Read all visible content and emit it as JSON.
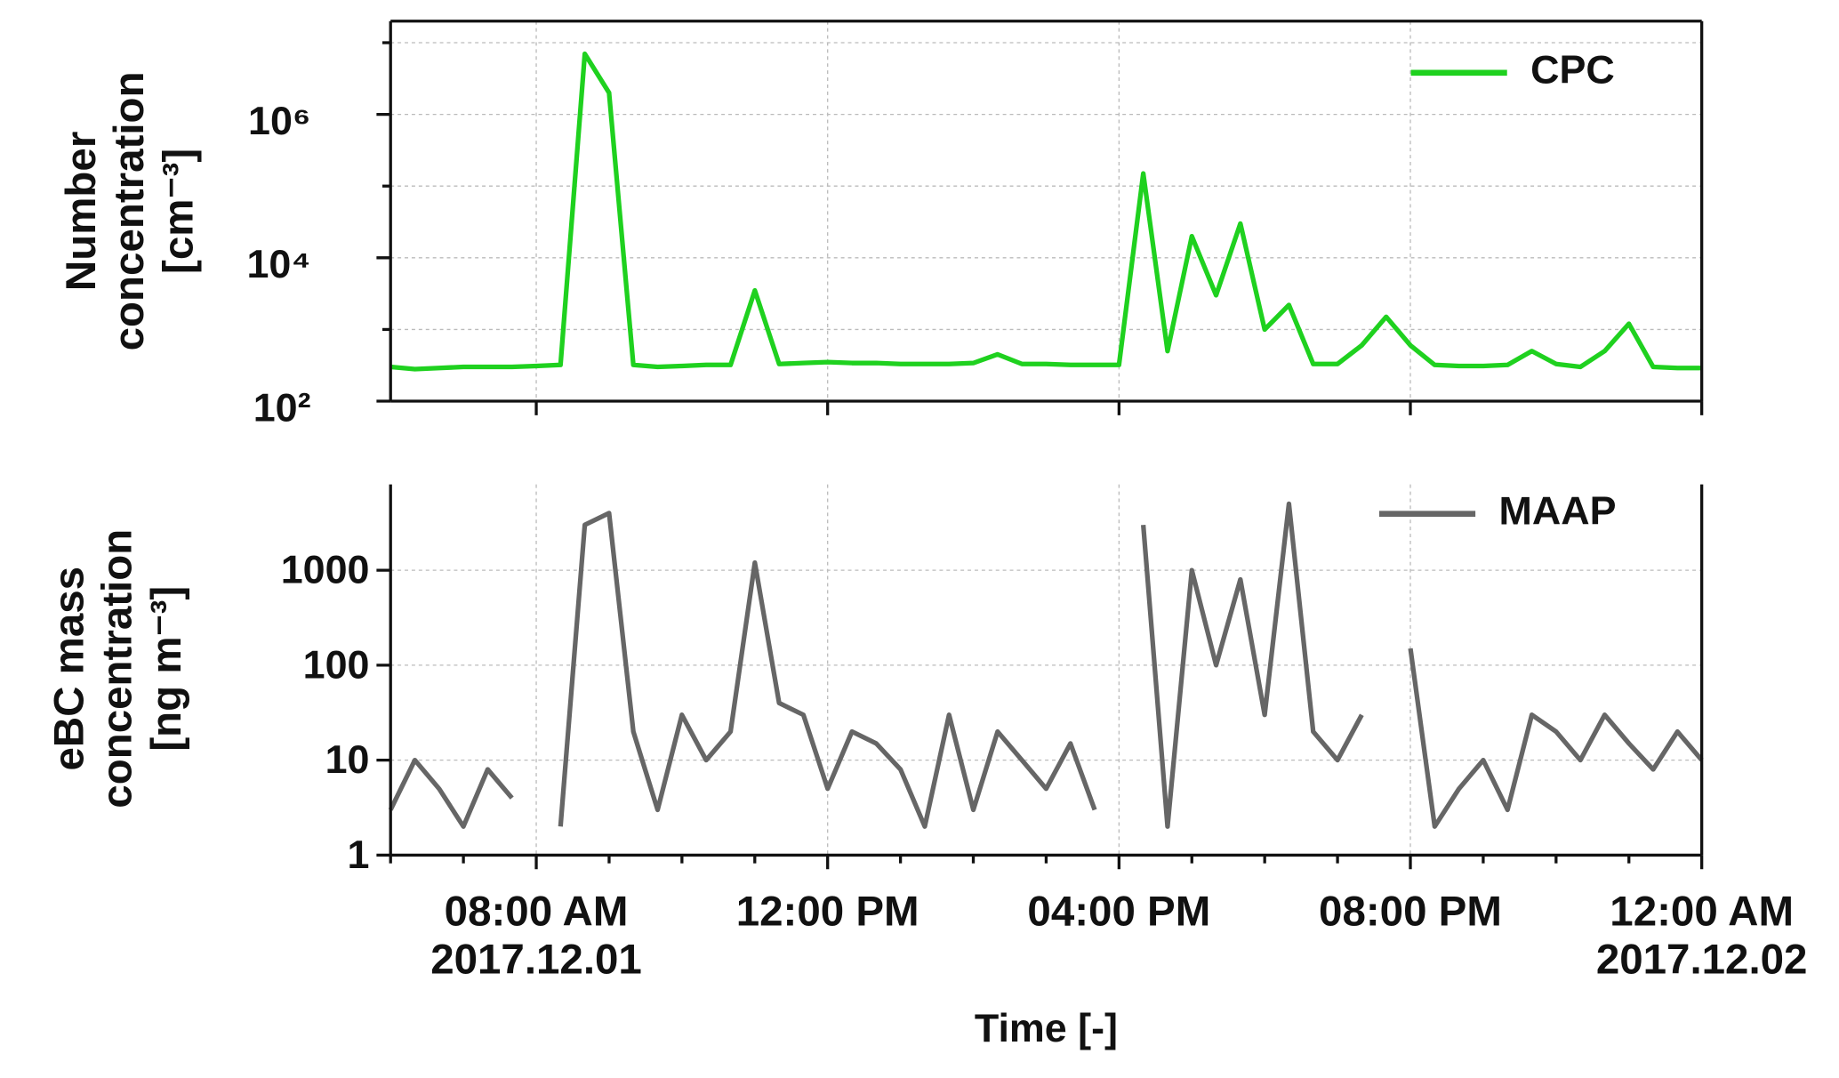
{
  "chart_data": [
    {
      "type": "line",
      "log_y": true,
      "grid": true,
      "legend": "upper right",
      "ylabel": "Number\nconcentration\n[cm⁻³]",
      "xlim": [
        "2017-12-01 06:00",
        "2017-12-02 00:00"
      ],
      "xticks": [
        "2017-12-01 08:00",
        "2017-12-01 12:00",
        "2017-12-01 16:00",
        "2017-12-01 20:00",
        "2017-12-02 00:00"
      ],
      "ylim": [
        100,
        20000000
      ],
      "yticks": [
        {
          "value": 100,
          "label": "10²"
        },
        {
          "value": 10000,
          "label": "10⁴"
        },
        {
          "value": 1000000,
          "label": "10⁶"
        }
      ],
      "yminor_ticks": [
        1000,
        100000,
        10000000
      ],
      "x": [
        "2017-12-01 06:00",
        "2017-12-01 06:20",
        "2017-12-01 06:40",
        "2017-12-01 07:00",
        "2017-12-01 07:20",
        "2017-12-01 07:40",
        "2017-12-01 08:00",
        "2017-12-01 08:20",
        "2017-12-01 08:40",
        "2017-12-01 09:00",
        "2017-12-01 09:20",
        "2017-12-01 09:40",
        "2017-12-01 10:00",
        "2017-12-01 10:20",
        "2017-12-01 10:40",
        "2017-12-01 11:00",
        "2017-12-01 11:20",
        "2017-12-01 11:40",
        "2017-12-01 12:00",
        "2017-12-01 12:20",
        "2017-12-01 12:40",
        "2017-12-01 13:00",
        "2017-12-01 13:20",
        "2017-12-01 13:40",
        "2017-12-01 14:00",
        "2017-12-01 14:20",
        "2017-12-01 14:40",
        "2017-12-01 15:00",
        "2017-12-01 15:20",
        "2017-12-01 15:40",
        "2017-12-01 16:00",
        "2017-12-01 16:20",
        "2017-12-01 16:40",
        "2017-12-01 17:00",
        "2017-12-01 17:20",
        "2017-12-01 17:40",
        "2017-12-01 18:00",
        "2017-12-01 18:20",
        "2017-12-01 18:40",
        "2017-12-01 19:00",
        "2017-12-01 19:20",
        "2017-12-01 19:40",
        "2017-12-01 20:00",
        "2017-12-01 20:20",
        "2017-12-01 20:40",
        "2017-12-01 21:00",
        "2017-12-01 21:20",
        "2017-12-01 21:40",
        "2017-12-01 22:00",
        "2017-12-01 22:20",
        "2017-12-01 22:40",
        "2017-12-01 23:00",
        "2017-12-01 23:20",
        "2017-12-01 23:40",
        "2017-12-02 00:00"
      ],
      "series": [
        {
          "name": "CPC",
          "color": "#1fd11f",
          "values": [
            300,
            280,
            290,
            300,
            300,
            300,
            310,
            320,
            7000000,
            2000000,
            320,
            300,
            310,
            320,
            320,
            3500,
            330,
            340,
            350,
            340,
            340,
            330,
            330,
            330,
            340,
            450,
            330,
            330,
            320,
            320,
            320,
            150000,
            500,
            20000,
            3000,
            30000,
            1000,
            2200,
            330,
            330,
            600,
            1500,
            600,
            320,
            310,
            310,
            320,
            500,
            330,
            300,
            500,
            1200,
            300,
            290,
            290
          ]
        }
      ]
    },
    {
      "type": "line",
      "log_y": true,
      "grid": true,
      "legend": "upper right",
      "ylabel": "eBC mass\nconcentration\n[ng m⁻³]",
      "xlabel": "Time [-]",
      "xlim": [
        "2017-12-01 06:00",
        "2017-12-02 00:00"
      ],
      "xticks": [
        {
          "value": "2017-12-01 08:00",
          "label": "08:00 AM\n2017.12.01"
        },
        {
          "value": "2017-12-01 12:00",
          "label": "12:00 PM"
        },
        {
          "value": "2017-12-01 16:00",
          "label": "04:00 PM"
        },
        {
          "value": "2017-12-01 20:00",
          "label": "08:00 PM"
        },
        {
          "value": "2017-12-02 00:00",
          "label": "12:00 AM\n2017.12.02"
        }
      ],
      "xminor_ticks": [
        "2017-12-01 06:00",
        "2017-12-01 07:00",
        "2017-12-01 09:00",
        "2017-12-01 10:00",
        "2017-12-01 11:00",
        "2017-12-01 13:00",
        "2017-12-01 14:00",
        "2017-12-01 15:00",
        "2017-12-01 17:00",
        "2017-12-01 18:00",
        "2017-12-01 19:00",
        "2017-12-01 21:00",
        "2017-12-01 22:00",
        "2017-12-01 23:00"
      ],
      "ylim": [
        1,
        8000
      ],
      "yticks": [
        1,
        10,
        100,
        1000
      ],
      "x": [
        "2017-12-01 06:00",
        "2017-12-01 06:20",
        "2017-12-01 06:40",
        "2017-12-01 07:00",
        "2017-12-01 07:20",
        "2017-12-01 07:40",
        "2017-12-01 08:00",
        "2017-12-01 08:20",
        "2017-12-01 08:40",
        "2017-12-01 09:00",
        "2017-12-01 09:20",
        "2017-12-01 09:40",
        "2017-12-01 10:00",
        "2017-12-01 10:20",
        "2017-12-01 10:40",
        "2017-12-01 11:00",
        "2017-12-01 11:20",
        "2017-12-01 11:40",
        "2017-12-01 12:00",
        "2017-12-01 12:20",
        "2017-12-01 12:40",
        "2017-12-01 13:00",
        "2017-12-01 13:20",
        "2017-12-01 13:40",
        "2017-12-01 14:00",
        "2017-12-01 14:20",
        "2017-12-01 14:40",
        "2017-12-01 15:00",
        "2017-12-01 15:20",
        "2017-12-01 15:40",
        "2017-12-01 16:00",
        "2017-12-01 16:20",
        "2017-12-01 16:40",
        "2017-12-01 17:00",
        "2017-12-01 17:20",
        "2017-12-01 17:40",
        "2017-12-01 18:00",
        "2017-12-01 18:20",
        "2017-12-01 18:40",
        "2017-12-01 19:00",
        "2017-12-01 19:20",
        "2017-12-01 19:40",
        "2017-12-01 20:00",
        "2017-12-01 20:20",
        "2017-12-01 20:40",
        "2017-12-01 21:00",
        "2017-12-01 21:20",
        "2017-12-01 21:40",
        "2017-12-01 22:00",
        "2017-12-01 22:20",
        "2017-12-01 22:40",
        "2017-12-01 23:00",
        "2017-12-01 23:20",
        "2017-12-01 23:40",
        "2017-12-02 00:00"
      ],
      "series": [
        {
          "name": "MAAP",
          "color": "#666666",
          "values": [
            3,
            10,
            5,
            2,
            8,
            4,
            null,
            2,
            3000,
            4000,
            20,
            3,
            30,
            10,
            20,
            1200,
            40,
            30,
            5,
            20,
            15,
            8,
            2,
            30,
            3,
            20,
            10,
            5,
            15,
            3,
            null,
            3000,
            2,
            1000,
            100,
            800,
            30,
            5000,
            20,
            10,
            30,
            null,
            150,
            2,
            5,
            10,
            3,
            30,
            20,
            10,
            30,
            15,
            8,
            20,
            10
          ]
        }
      ]
    }
  ]
}
